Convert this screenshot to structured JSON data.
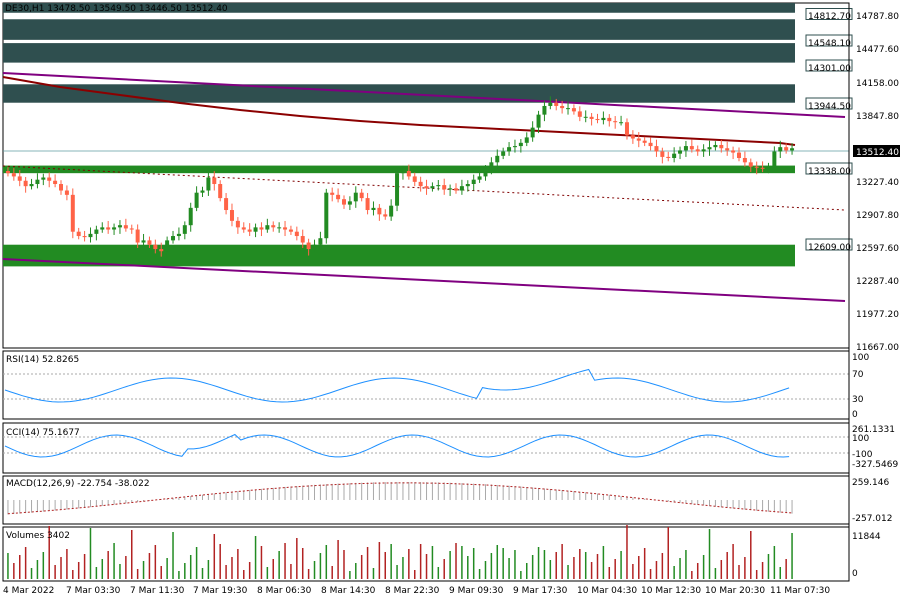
{
  "chart_data": {
    "type": "candlestick",
    "header": "DE30,H1  13478.50 13549.50 13446.50 13512.40",
    "price_axis": {
      "min": 11667.0,
      "max": 14850.0,
      "ticks": [
        "14787.80",
        "14477.60",
        "14158.00",
        "13847.80",
        "13537.60",
        "13227.40",
        "12907.80",
        "12597.60",
        "12287.40",
        "11977.20",
        "11667.00"
      ]
    },
    "current_price": "13512.40",
    "levels": [
      {
        "label": "14812.70",
        "price": 14812.7
      },
      {
        "label": "14548.10",
        "price": 14548.1
      },
      {
        "label": "14301.00",
        "price": 14301.0
      },
      {
        "label": "13944.50",
        "price": 13944.5
      },
      {
        "label": "13338.00",
        "price": 13338.0
      },
      {
        "label": "12609.00",
        "price": 12609.0
      }
    ],
    "zones": [
      {
        "top": 14850,
        "bottom": 14760,
        "color": "#2f4f4f"
      },
      {
        "top": 14700,
        "bottom": 14510,
        "color": "#2f4f4f"
      },
      {
        "top": 14480,
        "bottom": 14300,
        "color": "#2f4f4f"
      },
      {
        "top": 14100,
        "bottom": 13930,
        "color": "#2f4f4f"
      },
      {
        "top": 13350,
        "bottom": 13280,
        "color": "#228b22"
      },
      {
        "top": 12620,
        "bottom": 12420,
        "color": "#228b22"
      }
    ],
    "x_labels": [
      "4 Mar 2022",
      "7 Mar 03:30",
      "7 Mar 11:30",
      "7 Mar 19:30",
      "8 Mar 06:30",
      "8 Mar 14:30",
      "8 Mar 22:30",
      "9 Mar 09:30",
      "9 Mar 17:30",
      "10 Mar 04:30",
      "10 Mar 12:30",
      "10 Mar 20:30",
      "11 Mar 07:30"
    ],
    "closes": [
      13280,
      13250,
      13210,
      13160,
      13180,
      13220,
      13240,
      13210,
      13180,
      13120,
      13080,
      12740,
      12700,
      12690,
      12720,
      12760,
      12780,
      12760,
      12780,
      12800,
      12770,
      12760,
      12640,
      12660,
      12620,
      12580,
      12560,
      12660,
      12700,
      12720,
      12800,
      12960,
      13100,
      13120,
      13240,
      13180,
      13050,
      12940,
      12840,
      12780,
      12760,
      12740,
      12780,
      12760,
      12800,
      12780,
      12780,
      12760,
      12740,
      12700,
      12640,
      12580,
      12620,
      12680,
      13100,
      13080,
      13040,
      12990,
      13020,
      13100,
      13050,
      12940,
      12960,
      12900,
      12880,
      12980,
      13280,
      13300,
      13250,
      13200,
      13160,
      13140,
      13160,
      13170,
      13130,
      13140,
      13120,
      13160,
      13180,
      13220,
      13250,
      13320,
      13380,
      13440,
      13480,
      13520,
      13530,
      13560,
      13610,
      13700,
      13820,
      13900,
      13930,
      13900,
      13880,
      13880,
      13850,
      13800,
      13800,
      13780,
      13770,
      13790,
      13760,
      13750,
      13750,
      13630,
      13600,
      13580,
      13560,
      13530,
      13480,
      13430,
      13420,
      13460,
      13490,
      13530,
      13500,
      13480,
      13500,
      13520,
      13540,
      13510,
      13490,
      13470,
      13420,
      13380,
      13340,
      13330,
      13320,
      13340,
      13480,
      13520,
      13490,
      13510
    ],
    "ma_slow": {
      "color": "#8b0000"
    },
    "channel": {
      "color": "#800080"
    },
    "mid_line": {
      "color": "#800000"
    },
    "rsi": {
      "label": "RSI(14) 52.8265",
      "ticks": [
        "100",
        "70",
        "30",
        "0"
      ]
    },
    "cci": {
      "label": "CCI(14) 75.1677",
      "ticks": [
        "261.1331",
        "100",
        "-100",
        "-327.5469"
      ]
    },
    "macd": {
      "label": "MACD(12,26,9) -22.754 -38.022",
      "ticks": [
        "259.146",
        "-257.012"
      ]
    },
    "volumes": {
      "label": "Volumes 3402",
      "ticks": [
        "11844",
        "0"
      ]
    },
    "colors": {
      "bull": "#228b22",
      "bear": "#ff6347",
      "line": "#1e90ff"
    }
  }
}
